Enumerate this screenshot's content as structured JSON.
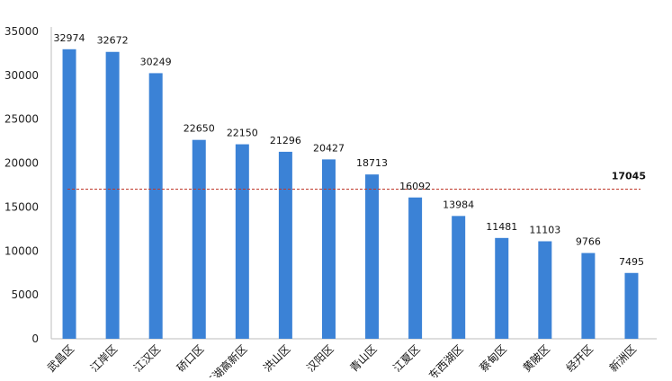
{
  "chart_data": {
    "type": "bar",
    "title": "",
    "xlabel": "",
    "ylabel": "",
    "categories": [
      "武昌区",
      "江岸区",
      "江汉区",
      "硚口区",
      "东湖高新区",
      "洪山区",
      "汉阳区",
      "青山区",
      "江夏区",
      "东西湖区",
      "蔡甸区",
      "黄陂区",
      "经开区",
      "新洲区"
    ],
    "values": [
      32974,
      32672,
      30249,
      22650,
      22150,
      21296,
      20427,
      18713,
      16092,
      13984,
      11481,
      11103,
      9766,
      7495
    ],
    "yticks": [
      0,
      5000,
      10000,
      15000,
      20000,
      25000,
      30000,
      35000
    ],
    "ylim": [
      0,
      35000
    ],
    "reference_line": {
      "value": 17045,
      "label": "17045",
      "style": "dashed",
      "color": "#c0392b"
    },
    "bar_color": "#3b82d6",
    "grid": false,
    "legend": "none"
  }
}
